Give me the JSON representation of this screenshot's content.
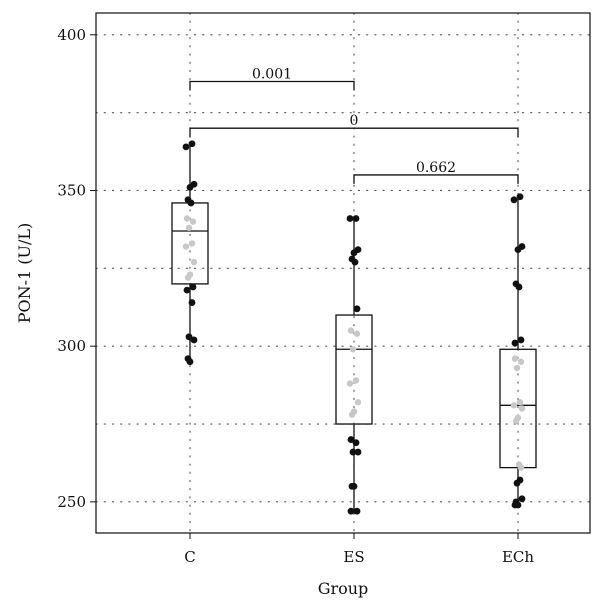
{
  "chart_data": {
    "type": "box",
    "xlabel": "Group",
    "ylabel": "PON-1 (U/L)",
    "categories": [
      "C",
      "ES",
      "ECh"
    ],
    "ylim": [
      240,
      407
    ],
    "yticks": [
      250,
      300,
      350,
      400
    ],
    "grid": true,
    "grid_style": "dotted",
    "boxes": [
      {
        "category": "C",
        "min": 295,
        "q1": 320,
        "median": 337,
        "q3": 346,
        "max": 365
      },
      {
        "category": "ES",
        "min": 247,
        "q1": 275,
        "median": 299,
        "q3": 310,
        "max": 341
      },
      {
        "category": "ECh",
        "min": 249,
        "q1": 261,
        "median": 281,
        "q3": 299,
        "max": 348
      }
    ],
    "points": [
      {
        "category": "C",
        "values_outside_box": [
          365,
          364,
          352,
          351,
          347,
          346,
          319,
          318,
          314,
          303,
          302,
          296,
          295
        ],
        "values_inside_box": [
          341,
          340,
          338,
          333,
          332,
          327,
          323,
          322
        ]
      },
      {
        "category": "ES",
        "values_outside_box": [
          341,
          341,
          331,
          330,
          328,
          327,
          312,
          270,
          269,
          266,
          266,
          255,
          255,
          247,
          247
        ],
        "values_inside_box": [
          305,
          304,
          299,
          289,
          288,
          282,
          279,
          278
        ]
      },
      {
        "category": "ECh",
        "values_outside_box": [
          348,
          347,
          332,
          331,
          320,
          319,
          302,
          301,
          257,
          256,
          251,
          250,
          249,
          249
        ],
        "values_inside_box": [
          296,
          295,
          293,
          282,
          281,
          280,
          277,
          276,
          262,
          261
        ]
      }
    ],
    "comparisons": [
      {
        "from": "C",
        "to": "ES",
        "y": 385,
        "label": "0.001"
      },
      {
        "from": "C",
        "to": "ECh",
        "y": 370,
        "label": "0"
      },
      {
        "from": "ES",
        "to": "ECh",
        "y": 355,
        "label": "0.662"
      }
    ],
    "colors": {
      "points_outside": "#111111",
      "points_inside": "#c8c8c8",
      "box": "#111111",
      "grid": "#555555"
    }
  }
}
